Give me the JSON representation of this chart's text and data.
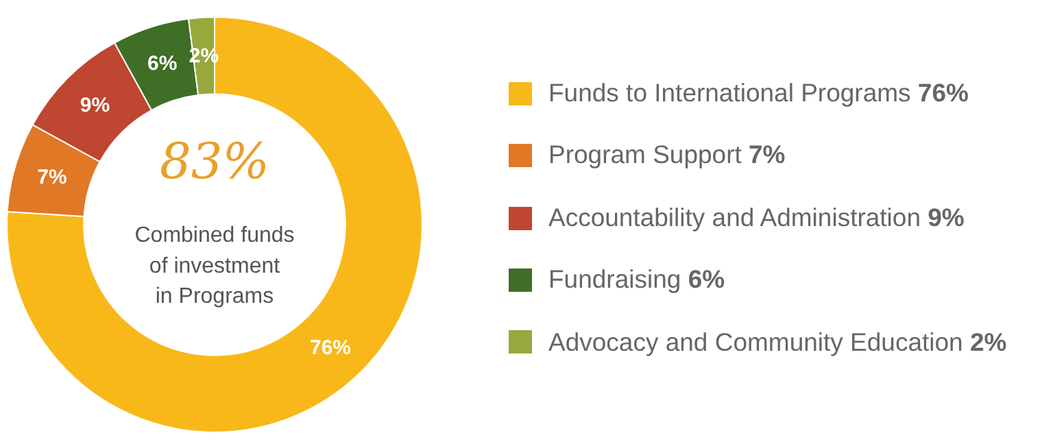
{
  "chart_data": {
    "type": "donut",
    "categories": [
      "Funds to International Programs",
      "Program Support",
      "Accountability and Administration",
      "Fundraising",
      "Advocacy and Community Education"
    ],
    "values": [
      76,
      7,
      9,
      6,
      2
    ],
    "value_labels": [
      "76%",
      "7%",
      "9%",
      "6%",
      "2%"
    ],
    "colors": [
      "#f8b819",
      "#e07825",
      "#bf4630",
      "#3f6e27",
      "#98a83c"
    ],
    "annotations": [
      "83%",
      "Combined funds\nof investment\nin Programs"
    ],
    "legend": "right"
  }
}
